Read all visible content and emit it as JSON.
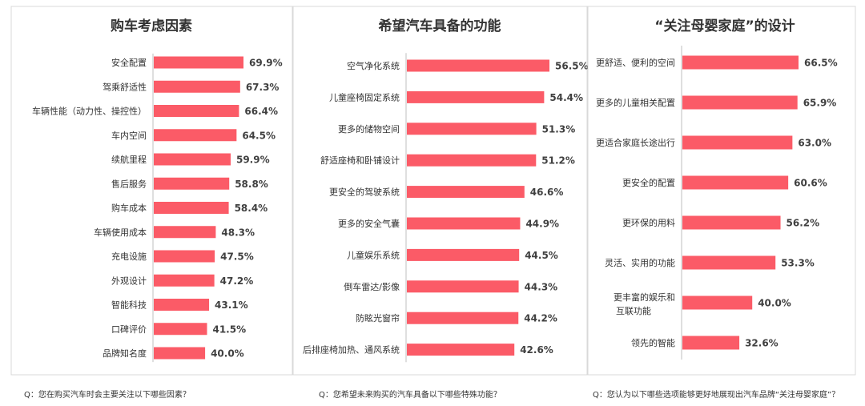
{
  "colors": {
    "bar": "#fb5b67",
    "frame": "#d9d9d9"
  },
  "chart_data": [
    {
      "type": "bar",
      "orientation": "horizontal",
      "title": "购车考虑因素",
      "unit": "%",
      "categories": [
        "安全配置",
        "驾乘舒适性",
        "车辆性能（动力性、操控性）",
        "车内空间",
        "续航里程",
        "售后服务",
        "购车成本",
        "车辆使用成本",
        "充电设施",
        "外观设计",
        "智能科技",
        "口碑评价",
        "品牌知名度"
      ],
      "values": [
        69.9,
        67.3,
        66.4,
        64.5,
        59.9,
        58.8,
        58.4,
        48.3,
        47.5,
        47.2,
        43.1,
        41.5,
        40.0
      ],
      "value_labels": [
        "69.9%",
        "67.3%",
        "66.4%",
        "64.5%",
        "59.9%",
        "58.8%",
        "58.4%",
        "48.3%",
        "47.5%",
        "47.2%",
        "43.1%",
        "41.5%",
        "40.0%"
      ],
      "question": "Q：您在购买汽车时会主要关注以下哪些因素？"
    },
    {
      "type": "bar",
      "orientation": "horizontal",
      "title": "希望汽车具备的功能",
      "unit": "%",
      "categories": [
        "空气净化系统",
        "儿童座椅固定系统",
        "更多的储物空间",
        "舒适座椅和卧铺设计",
        "更安全的驾驶系统",
        "更多的安全气囊",
        "儿童娱乐系统",
        "倒车雷达/影像",
        "防眩光窗帘",
        "后排座椅加热、通风系统"
      ],
      "values": [
        56.5,
        54.4,
        51.3,
        51.2,
        46.6,
        44.9,
        44.5,
        44.3,
        44.2,
        42.6
      ],
      "value_labels": [
        "56.5%",
        "54.4%",
        "51.3%",
        "51.2%",
        "46.6%",
        "44.9%",
        "44.5%",
        "44.3%",
        "44.2%",
        "42.6%"
      ],
      "question": "Q：您希望未来购买的汽车具备以下哪些特殊功能？"
    },
    {
      "type": "bar",
      "orientation": "horizontal",
      "title": "“关注母婴家庭”的设计",
      "unit": "%",
      "categories": [
        "更舒适、便利的空间",
        "更多的儿童相关配置",
        "更适合家庭长途出行",
        "更安全的配置",
        "更环保的用料",
        "灵活、实用的功能",
        "更丰富的娱乐和互联功能",
        "领先的智能"
      ],
      "values": [
        66.5,
        65.9,
        63.0,
        60.6,
        56.2,
        53.3,
        40.0,
        32.6
      ],
      "value_labels": [
        "66.5%",
        "65.9%",
        "63.0%",
        "60.6%",
        "56.2%",
        "53.3%",
        "40.0%",
        "32.6%"
      ],
      "question": "Q：您认为以下哪些选项能够更好地展现出汽车品牌“关注母婴家庭”？"
    }
  ]
}
